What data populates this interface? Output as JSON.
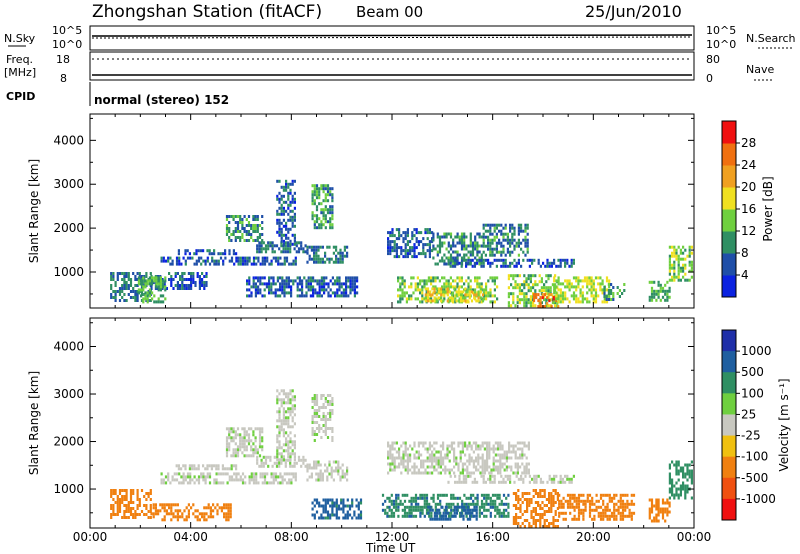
{
  "header": {
    "station": "Zhongshan Station (fitACF)",
    "beam": "Beam 00",
    "date": "25/Jun/2010"
  },
  "status_panel": {
    "nsky_label": "N.Sky",
    "nsky_ticks": [
      "10^5",
      "10^0"
    ],
    "nsearch_label": "N.Search",
    "nsearch_ticks": [
      "10^5",
      "10^0"
    ],
    "freq_label_line1": "Freq.",
    "freq_label_line2": "[MHz]",
    "freq_ticks": [
      "18",
      "8"
    ],
    "nave_label": "Nave",
    "nave_ticks": [
      "80",
      "0"
    ],
    "cpid_label": "CPID",
    "cpid_value": "normal (stereo) 152"
  },
  "colors": {
    "power_scale": [
      "#0b22e0",
      "#1f4fa8",
      "#2f8f63",
      "#6fcf3f",
      "#f0e020",
      "#f0a020",
      "#f07010",
      "#f01010"
    ],
    "velocity_scale": [
      "#1f2fa8",
      "#1f5fa0",
      "#2f8f63",
      "#6fcf3f",
      "#c8c8c0",
      "#f0c010",
      "#f08010",
      "#f05010",
      "#f01010"
    ]
  },
  "chart_data": [
    {
      "type": "heatmap",
      "panel": "power",
      "xlabel": "",
      "ylabel": "Slant Range [km]",
      "x_ticks": [
        "00:00",
        "04:00",
        "08:00",
        "12:00",
        "16:00",
        "20:00",
        "00:00"
      ],
      "x_range_hours": [
        0,
        24
      ],
      "yticks": [
        "1000",
        "2000",
        "3000",
        "4000"
      ],
      "y_range_km": [
        180,
        4600
      ],
      "colorbar_label": "Power [dB]",
      "colorbar_ticks": [
        "4",
        "8",
        "12",
        "16",
        "20",
        "24",
        "28"
      ],
      "colorbar_range": [
        0,
        32
      ],
      "regions": [
        {
          "t0": 0.8,
          "t1": 2.4,
          "r0": 380,
          "r1": 1000,
          "level": 8
        },
        {
          "t0": 2.4,
          "t1": 4.6,
          "r0": 600,
          "r1": 1000,
          "level": 6
        },
        {
          "t0": 1.9,
          "t1": 3.0,
          "r0": 330,
          "r1": 900,
          "level": 12
        },
        {
          "t0": 2.8,
          "t1": 8.2,
          "r0": 1150,
          "r1": 1350,
          "level": 6
        },
        {
          "t0": 3.4,
          "t1": 5.8,
          "r0": 1400,
          "r1": 1520,
          "level": 5
        },
        {
          "t0": 5.4,
          "t1": 6.8,
          "r0": 1700,
          "r1": 2300,
          "level": 10
        },
        {
          "t0": 6.6,
          "t1": 8.6,
          "r0": 1450,
          "r1": 1700,
          "level": 8
        },
        {
          "t0": 7.4,
          "t1": 8.1,
          "r0": 1600,
          "r1": 3100,
          "level": 6
        },
        {
          "t0": 8.8,
          "t1": 9.6,
          "r0": 2000,
          "r1": 3000,
          "level": 11
        },
        {
          "t0": 8.6,
          "t1": 10.2,
          "r0": 1200,
          "r1": 1600,
          "level": 8
        },
        {
          "t0": 6.2,
          "t1": 10.6,
          "r0": 450,
          "r1": 900,
          "level": 6
        },
        {
          "t0": 11.8,
          "t1": 13.6,
          "r0": 1350,
          "r1": 2000,
          "level": 7
        },
        {
          "t0": 13.6,
          "t1": 15.6,
          "r0": 1150,
          "r1": 1900,
          "level": 9
        },
        {
          "t0": 15.6,
          "t1": 17.4,
          "r0": 1350,
          "r1": 2100,
          "level": 9
        },
        {
          "t0": 14.2,
          "t1": 19.2,
          "r0": 1150,
          "r1": 1300,
          "level": 6
        },
        {
          "t0": 12.2,
          "t1": 16.2,
          "r0": 350,
          "r1": 900,
          "level": 14
        },
        {
          "t0": 13.3,
          "t1": 15.6,
          "r0": 350,
          "r1": 650,
          "level": 18
        },
        {
          "t0": 16.6,
          "t1": 18.6,
          "r0": 200,
          "r1": 950,
          "level": 14
        },
        {
          "t0": 17.6,
          "t1": 18.6,
          "r0": 180,
          "r1": 520,
          "level": 26
        },
        {
          "t0": 18.4,
          "t1": 20.6,
          "r0": 350,
          "r1": 900,
          "level": 16
        },
        {
          "t0": 20.4,
          "t1": 21.2,
          "r0": 400,
          "r1": 750,
          "level": 9
        },
        {
          "t0": 22.2,
          "t1": 23.0,
          "r0": 350,
          "r1": 800,
          "level": 12
        },
        {
          "t0": 23.0,
          "t1": 23.9,
          "r0": 800,
          "r1": 1600,
          "level": 14
        }
      ]
    },
    {
      "type": "heatmap",
      "panel": "velocity",
      "xlabel": "Time UT",
      "ylabel": "Slant Range [km]",
      "x_ticks": [
        "00:00",
        "04:00",
        "08:00",
        "12:00",
        "16:00",
        "20:00",
        "00:00"
      ],
      "x_range_hours": [
        0,
        24
      ],
      "yticks": [
        "1000",
        "2000",
        "3000",
        "4000"
      ],
      "y_range_km": [
        180,
        4600
      ],
      "colorbar_label": "Velocity [m s⁻¹]",
      "colorbar_ticks": [
        "1000",
        "500",
        "100",
        "25",
        "-25",
        "-100",
        "-500",
        "-1000"
      ],
      "regions": [
        {
          "t0": 0.8,
          "t1": 2.4,
          "r0": 400,
          "r1": 1000,
          "level": -300
        },
        {
          "t0": 2.4,
          "t1": 5.6,
          "r0": 350,
          "r1": 700,
          "level": -250
        },
        {
          "t0": 2.8,
          "t1": 8.2,
          "r0": 1150,
          "r1": 1350,
          "level": 0
        },
        {
          "t0": 3.4,
          "t1": 5.8,
          "r0": 1400,
          "r1": 1520,
          "level": 0
        },
        {
          "t0": 5.4,
          "t1": 6.8,
          "r0": 1700,
          "r1": 2300,
          "level": 0
        },
        {
          "t0": 6.6,
          "t1": 8.6,
          "r0": 1450,
          "r1": 1700,
          "level": 0
        },
        {
          "t0": 7.4,
          "t1": 8.1,
          "r0": 1600,
          "r1": 3100,
          "level": 0
        },
        {
          "t0": 8.8,
          "t1": 9.6,
          "r0": 2000,
          "r1": 3000,
          "level": 0
        },
        {
          "t0": 8.6,
          "t1": 10.2,
          "r0": 1200,
          "r1": 1600,
          "level": 0
        },
        {
          "t0": 8.8,
          "t1": 10.8,
          "r0": 400,
          "r1": 800,
          "level": 150
        },
        {
          "t0": 11.8,
          "t1": 17.4,
          "r0": 1350,
          "r1": 2000,
          "level": 0
        },
        {
          "t0": 14.2,
          "t1": 19.2,
          "r0": 1150,
          "r1": 1300,
          "level": 0
        },
        {
          "t0": 11.6,
          "t1": 16.6,
          "r0": 400,
          "r1": 900,
          "level": 80
        },
        {
          "t0": 13.4,
          "t1": 15.4,
          "r0": 380,
          "r1": 650,
          "level": 300
        },
        {
          "t0": 16.8,
          "t1": 18.6,
          "r0": 200,
          "r1": 1000,
          "level": -300
        },
        {
          "t0": 18.6,
          "t1": 21.6,
          "r0": 350,
          "r1": 900,
          "level": -250
        },
        {
          "t0": 22.2,
          "t1": 23.0,
          "r0": 350,
          "r1": 800,
          "level": -200
        },
        {
          "t0": 23.0,
          "t1": 23.9,
          "r0": 800,
          "r1": 1600,
          "level": 60
        }
      ]
    }
  ]
}
